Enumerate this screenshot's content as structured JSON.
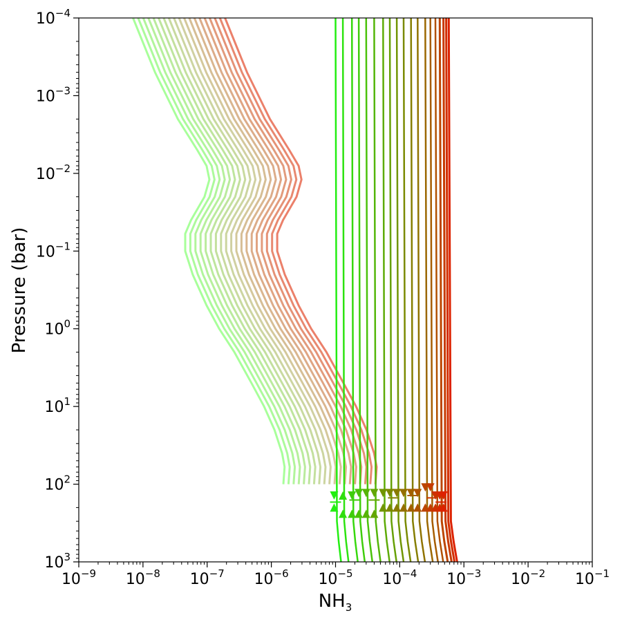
{
  "chart_data": {
    "type": "line",
    "title": "",
    "xlabel": {
      "base": "NH",
      "sub": "3"
    },
    "ylabel": "Pressure (bar)",
    "xscale": "log",
    "yscale": "log",
    "y_inverted": true,
    "xlim": [
      1e-09,
      0.1
    ],
    "ylim": [
      1000,
      0.0001
    ],
    "grid": false,
    "legend": "none",
    "x_ticks": [
      {
        "base": "10",
        "exp": "−9",
        "value": 1e-09
      },
      {
        "base": "10",
        "exp": "−8",
        "value": 1e-08
      },
      {
        "base": "10",
        "exp": "−7",
        "value": 1e-07
      },
      {
        "base": "10",
        "exp": "−6",
        "value": 1e-06
      },
      {
        "base": "10",
        "exp": "−5",
        "value": 1e-05
      },
      {
        "base": "10",
        "exp": "−4",
        "value": 0.0001
      },
      {
        "base": "10",
        "exp": "−3",
        "value": 0.001
      },
      {
        "base": "10",
        "exp": "−2",
        "value": 0.01
      },
      {
        "base": "10",
        "exp": "−1",
        "value": 0.1
      }
    ],
    "y_ticks": [
      {
        "base": "10",
        "exp": "−4",
        "value": 0.0001
      },
      {
        "base": "10",
        "exp": "−3",
        "value": 0.001
      },
      {
        "base": "10",
        "exp": "−2",
        "value": 0.01
      },
      {
        "base": "10",
        "exp": "−1",
        "value": 0.1
      },
      {
        "base": "10",
        "exp": "0",
        "value": 1
      },
      {
        "base": "10",
        "exp": "1",
        "value": 10
      },
      {
        "base": "10",
        "exp": "2",
        "value": 100
      },
      {
        "base": "10",
        "exp": "3",
        "value": 1000
      }
    ],
    "colors": {
      "green": "#22ee11",
      "olive": "#7a8a00",
      "red": "#dd2200",
      "light_green": "#99ff88",
      "light_red": "#e86a50"
    },
    "profile_group_A": {
      "description_style": "vertical deep-abundance profiles, green to red",
      "deep_bend": [
        [
          300,
          0.05
        ],
        [
          550,
          0.12
        ],
        [
          1000,
          0.22
        ]
      ],
      "series_values": [
        1e-05,
        1.3e-05,
        1.8e-05,
        2.3e-05,
        3e-05,
        4e-05,
        5.5e-05,
        7e-05,
        9e-05,
        0.000115,
        0.00015,
        0.00019,
        0.00025,
        0.0003,
        0.00036,
        0.00042,
        0.00048,
        0.00053,
        0.00058
      ],
      "upper_marker_pressure": 160,
      "lower_marker_pressure": 220,
      "markers": [
        {
          "x": 9.5e-06,
          "p": 140,
          "dir": "down"
        },
        {
          "x": 9.5e-06,
          "p": 200,
          "dir": "up"
        },
        {
          "x": 1.3e-05,
          "p": 140,
          "dir": "up"
        },
        {
          "x": 1.3e-05,
          "p": 240,
          "dir": "up"
        },
        {
          "x": 1.8e-05,
          "p": 140,
          "dir": "down"
        },
        {
          "x": 1.8e-05,
          "p": 240,
          "dir": "up"
        },
        {
          "x": 2.3e-05,
          "p": 130,
          "dir": "down"
        },
        {
          "x": 2.3e-05,
          "p": 240,
          "dir": "up"
        },
        {
          "x": 3e-05,
          "p": 130,
          "dir": "down"
        },
        {
          "x": 3e-05,
          "p": 240,
          "dir": "up"
        },
        {
          "x": 4e-05,
          "p": 130,
          "dir": "down"
        },
        {
          "x": 4e-05,
          "p": 240,
          "dir": "up"
        },
        {
          "x": 5.5e-05,
          "p": 130,
          "dir": "down"
        },
        {
          "x": 5.5e-05,
          "p": 200,
          "dir": "up"
        },
        {
          "x": 7e-05,
          "p": 130,
          "dir": "down"
        },
        {
          "x": 7e-05,
          "p": 200,
          "dir": "up"
        },
        {
          "x": 9e-05,
          "p": 130,
          "dir": "down"
        },
        {
          "x": 9e-05,
          "p": 200,
          "dir": "up"
        },
        {
          "x": 0.000115,
          "p": 130,
          "dir": "down"
        },
        {
          "x": 0.000115,
          "p": 200,
          "dir": "up"
        },
        {
          "x": 0.00015,
          "p": 130,
          "dir": "down"
        },
        {
          "x": 0.00015,
          "p": 200,
          "dir": "up"
        },
        {
          "x": 0.00019,
          "p": 130,
          "dir": "down"
        },
        {
          "x": 0.00019,
          "p": 200,
          "dir": "up"
        },
        {
          "x": 0.00025,
          "p": 110,
          "dir": "down"
        },
        {
          "x": 0.00025,
          "p": 200,
          "dir": "up"
        },
        {
          "x": 0.0003,
          "p": 110,
          "dir": "down"
        },
        {
          "x": 0.0003,
          "p": 200,
          "dir": "up"
        },
        {
          "x": 0.00036,
          "p": 140,
          "dir": "down"
        },
        {
          "x": 0.00036,
          "p": 200,
          "dir": "up"
        },
        {
          "x": 0.00042,
          "p": 140,
          "dir": "down"
        },
        {
          "x": 0.00042,
          "p": 200,
          "dir": "up"
        },
        {
          "x": 0.00048,
          "p": 140,
          "dir": "down"
        },
        {
          "x": 0.00048,
          "p": 200,
          "dir": "up"
        }
      ]
    },
    "profile_group_B": {
      "description_style": "photochemical profiles, light green to light red",
      "shape": [
        [
          0.0001,
          1.0
        ],
        [
          0.0005,
          2.2
        ],
        [
          0.002,
          5.0
        ],
        [
          0.005,
          10.0
        ],
        [
          0.008,
          14.0
        ],
        [
          0.012,
          15.5
        ],
        [
          0.02,
          13.0
        ],
        [
          0.04,
          8.0
        ],
        [
          0.06,
          6.5
        ],
        [
          0.1,
          6.5
        ],
        [
          0.2,
          8.5
        ],
        [
          0.5,
          14.0
        ],
        [
          1.0,
          22.0
        ],
        [
          2.0,
          38.0
        ],
        [
          5.0,
          70.0
        ],
        [
          10.0,
          110.0
        ],
        [
          20.0,
          160.0
        ],
        [
          40.0,
          210.0
        ],
        [
          60.0,
          230.0
        ],
        [
          100.0,
          220.0
        ]
      ],
      "scale_first": 7e-09,
      "scale_last": 1.9e-07,
      "series_count": 19
    }
  }
}
